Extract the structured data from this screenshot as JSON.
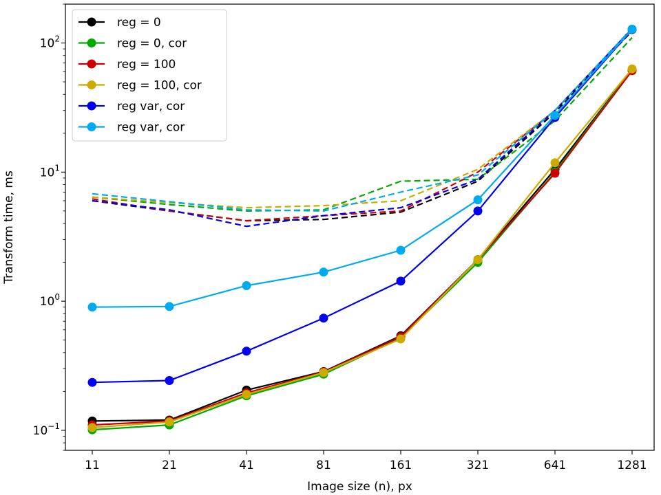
{
  "chart_data": {
    "type": "line",
    "title": "",
    "xlabel": "Image size (n), px",
    "ylabel": "Transform time, ms",
    "yscale": "log",
    "ylim": [
      0.07,
      200
    ],
    "categories": [
      "11",
      "21",
      "41",
      "81",
      "161",
      "321",
      "641",
      "1281"
    ],
    "ytick_values": [
      0.1,
      1,
      10,
      100
    ],
    "ytick_labels": [
      {
        "base": "10",
        "exp": "−1"
      },
      {
        "base": "10",
        "exp": "0"
      },
      {
        "base": "10",
        "exp": "1"
      },
      {
        "base": "10",
        "exp": "2"
      }
    ],
    "legend_position": "upper-left",
    "series": [
      {
        "name": "reg = 0",
        "color": "#000000",
        "solid": [
          0.118,
          0.12,
          0.205,
          0.285,
          0.54,
          2.1,
          10.5,
          62
        ],
        "dashed": [
          6.0,
          5.0,
          4.2,
          4.3,
          4.9,
          8.5,
          29,
          124
        ]
      },
      {
        "name": "reg = 0, cor",
        "color": "#00aa00",
        "solid": [
          0.101,
          0.11,
          0.185,
          0.272,
          0.52,
          2.0,
          10.0,
          62
        ],
        "dashed": [
          6.4,
          5.6,
          5.0,
          5.1,
          8.5,
          8.8,
          25,
          110
        ]
      },
      {
        "name": "reg = 100",
        "color": "#cc0000",
        "solid": [
          0.11,
          0.118,
          0.195,
          0.283,
          0.53,
          2.1,
          9.8,
          61
        ],
        "dashed": [
          6.2,
          5.0,
          4.2,
          4.6,
          5.0,
          10.0,
          30,
          128
        ]
      },
      {
        "name": "reg = 100, cor",
        "color": "#ccaa00",
        "solid": [
          0.105,
          0.116,
          0.19,
          0.28,
          0.51,
          2.1,
          11.8,
          63
        ],
        "dashed": [
          6.4,
          5.8,
          5.3,
          5.5,
          6.0,
          10.5,
          30,
          130
        ]
      },
      {
        "name": "reg var, cor",
        "color": "#0000ee",
        "solid": [
          0.235,
          0.243,
          0.41,
          0.74,
          1.43,
          5.0,
          26.5,
          127
        ],
        "dashed": [
          6.0,
          5.1,
          3.8,
          4.6,
          5.3,
          8.8,
          30,
          129
        ]
      },
      {
        "name": "reg var, cor",
        "color": "#00aaee",
        "solid": [
          0.9,
          0.91,
          1.32,
          1.68,
          2.48,
          6.1,
          27.5,
          128
        ],
        "dashed": [
          6.8,
          5.9,
          5.1,
          5.0,
          7.0,
          9.5,
          30,
          130
        ]
      }
    ]
  }
}
